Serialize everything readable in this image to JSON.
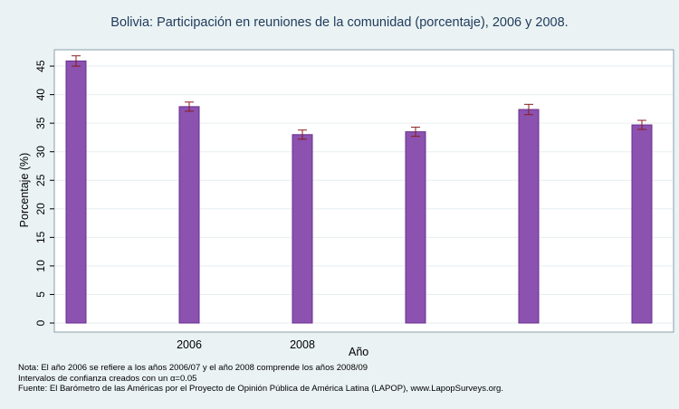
{
  "chart_data": {
    "type": "bar",
    "title": "Bolivia: Participación en reuniones de la comunidad (porcentaje), 2006 y 2008.",
    "xlabel": "Año",
    "ylabel": "Porcentaje (%)",
    "categories": [
      "",
      "2006",
      "2008",
      "",
      "",
      ""
    ],
    "values": [
      45.9,
      37.9,
      33.0,
      33.5,
      37.4,
      34.7
    ],
    "ci_low": [
      45.0,
      37.1,
      32.2,
      32.7,
      36.5,
      33.9
    ],
    "ci_high": [
      46.8,
      38.7,
      33.8,
      34.3,
      38.3,
      35.5
    ],
    "ylim": [
      0,
      48
    ],
    "yticks": [
      0,
      5,
      10,
      15,
      20,
      25,
      30,
      35,
      40,
      45
    ],
    "grid": true,
    "colors": {
      "bar": "#8b52b0",
      "bar_edge": "#6a2f8f",
      "errorbar": "#8a1c1c",
      "plot_bg": "#ffffff",
      "page_bg": "#eaf2f3"
    }
  },
  "notes": [
    "Nota: El año 2006 se refiere a los años 2006/07 y el año 2008 comprende los años 2008/09",
    "Intervalos de confianza creados con un α=0.05",
    "Fuente: El Barómetro de las Américas por el Proyecto de Opinión Pública de América Latina (LAPOP), www.LapopSurveys.org."
  ]
}
